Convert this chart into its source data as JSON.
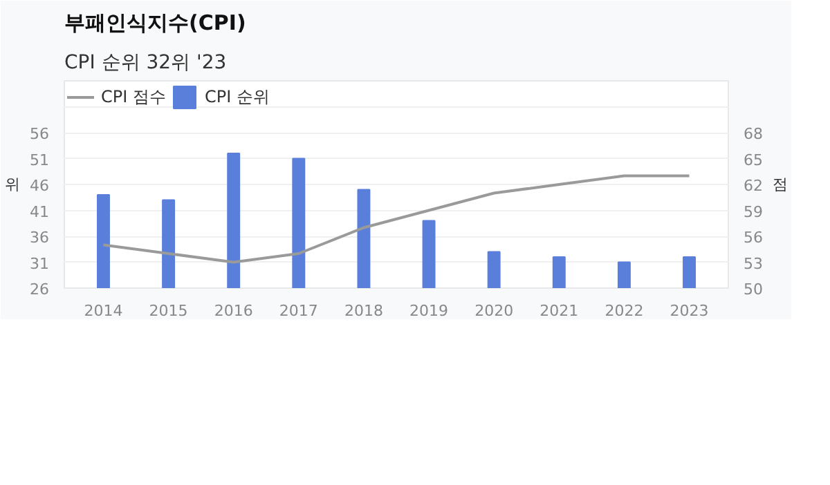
{
  "chart_data": {
    "type": "bar",
    "title": "부패인식지수(CPI)",
    "subtitle": "CPI 순위 32위 '23",
    "ylabel": "위",
    "y2label": "점",
    "categories": [
      "2014",
      "2015",
      "2016",
      "2017",
      "2018",
      "2019",
      "2020",
      "2021",
      "2022",
      "2023"
    ],
    "series": [
      {
        "name": "CPI 점수",
        "type": "line",
        "axis": "y2",
        "color": "#9a9a9a",
        "values": [
          55,
          54,
          53,
          54,
          57,
          59,
          61,
          62,
          63,
          63
        ]
      },
      {
        "name": "CPI 순위",
        "color": "#5a7fdb",
        "values": [
          44,
          43,
          52,
          51,
          45,
          39,
          33,
          32,
          31,
          32
        ]
      }
    ],
    "ylim": [
      26,
      66
    ],
    "yticks": [
      26,
      31,
      36,
      41,
      46,
      51,
      56,
      {
        "value": 61,
        "label": null
      }
    ],
    "y2lim": [
      50,
      74
    ],
    "y2ticks": [
      50,
      53,
      56,
      59,
      62,
      65,
      68
    ],
    "grid": "y",
    "legend": "top left"
  }
}
